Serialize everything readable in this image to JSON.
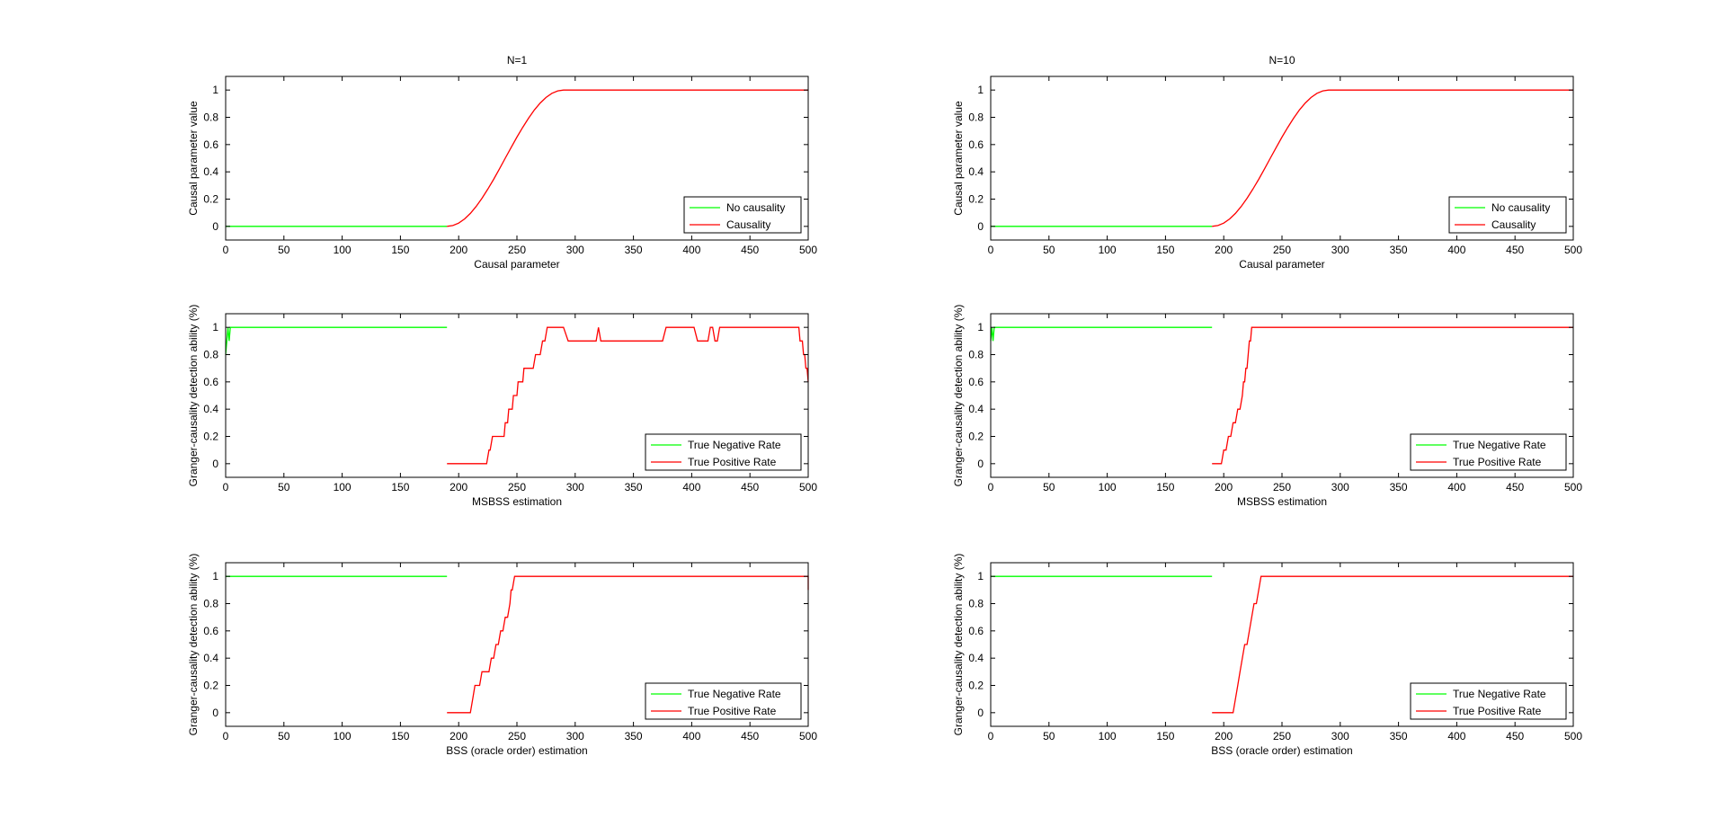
{
  "chart_data": [
    {
      "type": "line",
      "id": "n1-causal",
      "title": "N=1",
      "xlabel": "Causal parameter",
      "ylabel": "Causal parameter value",
      "xlim": [
        0,
        500
      ],
      "ylim": [
        -0.1,
        1.1
      ],
      "xticks": [
        0,
        50,
        100,
        150,
        200,
        250,
        300,
        350,
        400,
        450,
        500
      ],
      "yticks": [
        0,
        0.2,
        0.4,
        0.6,
        0.8,
        1
      ],
      "legend_position": "bottom-right",
      "series": [
        {
          "name": "No causality",
          "color": "#00ff00",
          "x": [
            0,
            190
          ],
          "y": [
            0,
            0
          ]
        },
        {
          "name": "Causality",
          "color": "#ff0000",
          "x": [
            190,
            195,
            200,
            205,
            210,
            215,
            220,
            225,
            230,
            235,
            240,
            245,
            250,
            255,
            260,
            265,
            270,
            275,
            280,
            285,
            290,
            500
          ],
          "y": [
            0,
            0.006,
            0.024,
            0.054,
            0.095,
            0.146,
            0.206,
            0.273,
            0.345,
            0.422,
            0.5,
            0.578,
            0.655,
            0.727,
            0.794,
            0.854,
            0.905,
            0.946,
            0.976,
            0.994,
            1,
            1
          ]
        }
      ]
    },
    {
      "type": "line",
      "id": "n10-causal",
      "title": "N=10",
      "xlabel": "Causal parameter",
      "ylabel": "Causal parameter value",
      "xlim": [
        0,
        500
      ],
      "ylim": [
        -0.1,
        1.1
      ],
      "xticks": [
        0,
        50,
        100,
        150,
        200,
        250,
        300,
        350,
        400,
        450,
        500
      ],
      "yticks": [
        0,
        0.2,
        0.4,
        0.6,
        0.8,
        1
      ],
      "legend_position": "bottom-right",
      "series": [
        {
          "name": "No causality",
          "color": "#00ff00",
          "x": [
            0,
            190
          ],
          "y": [
            0,
            0
          ]
        },
        {
          "name": "Causality",
          "color": "#ff0000",
          "x": [
            190,
            195,
            200,
            205,
            210,
            215,
            220,
            225,
            230,
            235,
            240,
            245,
            250,
            255,
            260,
            265,
            270,
            275,
            280,
            285,
            290,
            500
          ],
          "y": [
            0,
            0.006,
            0.024,
            0.054,
            0.095,
            0.146,
            0.206,
            0.273,
            0.345,
            0.422,
            0.5,
            0.578,
            0.655,
            0.727,
            0.794,
            0.854,
            0.905,
            0.946,
            0.976,
            0.994,
            1,
            1
          ]
        }
      ]
    },
    {
      "type": "line",
      "id": "n1-msbss",
      "title": "",
      "xlabel": "MSBSS estimation",
      "ylabel": "Granger-causality detection ability (%)",
      "xlim": [
        0,
        500
      ],
      "ylim": [
        -0.1,
        1.1
      ],
      "xticks": [
        0,
        50,
        100,
        150,
        200,
        250,
        300,
        350,
        400,
        450,
        500
      ],
      "yticks": [
        0,
        0.2,
        0.4,
        0.6,
        0.8,
        1
      ],
      "legend_position": "bottom-right",
      "series": [
        {
          "name": "True Negative Rate",
          "color": "#00ff00",
          "x": [
            0,
            1,
            2,
            3,
            4,
            190
          ],
          "y": [
            0.8,
            0.9,
            1,
            0.9,
            1,
            1
          ]
        },
        {
          "name": "True Positive Rate",
          "color": "#ff0000",
          "x": [
            190,
            224,
            226,
            227,
            229,
            230,
            231,
            233,
            235,
            236,
            238,
            239,
            240,
            241,
            242,
            243,
            244,
            245,
            246,
            247,
            248,
            249,
            250,
            251,
            252,
            253,
            254,
            255,
            256,
            257,
            258,
            260,
            262,
            264,
            266,
            268,
            270,
            272,
            274,
            276,
            278,
            280,
            282,
            284,
            286,
            290,
            294,
            296,
            298,
            300,
            305,
            310,
            315,
            318,
            320,
            322,
            325,
            330,
            335,
            340,
            345,
            350,
            355,
            360,
            365,
            370,
            375,
            378,
            380,
            385,
            390,
            395,
            398,
            400,
            402,
            405,
            408,
            410,
            412,
            414,
            416,
            418,
            420,
            422,
            424,
            426,
            428,
            430,
            440,
            450,
            460,
            470,
            480,
            490,
            492,
            493,
            494,
            495,
            496,
            497,
            498,
            499,
            500
          ],
          "y": [
            0,
            0,
            0.1,
            0.1,
            0.2,
            0.2,
            0.2,
            0.2,
            0.2,
            0.2,
            0.2,
            0.2,
            0.3,
            0.3,
            0.3,
            0.4,
            0.4,
            0.4,
            0.4,
            0.5,
            0.5,
            0.5,
            0.5,
            0.6,
            0.6,
            0.6,
            0.6,
            0.6,
            0.7,
            0.7,
            0.7,
            0.7,
            0.7,
            0.7,
            0.8,
            0.8,
            0.8,
            0.9,
            0.9,
            1,
            1,
            1,
            1,
            1,
            1,
            1,
            0.9,
            0.9,
            0.9,
            0.9,
            0.9,
            0.9,
            0.9,
            0.9,
            1,
            0.9,
            0.9,
            0.9,
            0.9,
            0.9,
            0.9,
            0.9,
            0.9,
            0.9,
            0.9,
            0.9,
            0.9,
            1,
            1,
            1,
            1,
            1,
            1,
            1,
            1,
            0.9,
            0.9,
            0.9,
            0.9,
            0.9,
            1,
            1,
            0.9,
            0.9,
            1,
            1,
            1,
            1,
            1,
            1,
            1,
            1,
            1,
            1,
            1,
            0.9,
            0.9,
            0.9,
            0.8,
            0.8,
            0.7,
            0.7,
            0.6
          ]
        }
      ]
    },
    {
      "type": "line",
      "id": "n10-msbss",
      "title": "",
      "xlabel": "MSBSS estimation",
      "ylabel": "Granger-causality detection ability (%)",
      "xlim": [
        0,
        500
      ],
      "ylim": [
        -0.1,
        1.1
      ],
      "xticks": [
        0,
        50,
        100,
        150,
        200,
        250,
        300,
        350,
        400,
        450,
        500
      ],
      "yticks": [
        0,
        0.2,
        0.4,
        0.6,
        0.8,
        1
      ],
      "legend_position": "bottom-right",
      "series": [
        {
          "name": "True Negative Rate",
          "color": "#00ff00",
          "x": [
            0,
            1,
            2,
            3,
            190
          ],
          "y": [
            0.9,
            1,
            0.9,
            1,
            1
          ]
        },
        {
          "name": "True Positive Rate",
          "color": "#ff0000",
          "x": [
            190,
            198,
            200,
            202,
            204,
            206,
            208,
            210,
            212,
            214,
            216,
            217,
            218,
            219,
            220,
            221,
            222,
            223,
            224,
            225,
            500
          ],
          "y": [
            0,
            0,
            0.1,
            0.1,
            0.2,
            0.2,
            0.3,
            0.3,
            0.4,
            0.4,
            0.5,
            0.6,
            0.6,
            0.7,
            0.7,
            0.8,
            0.9,
            0.9,
            1,
            1,
            1
          ]
        }
      ]
    },
    {
      "type": "line",
      "id": "n1-bss",
      "title": "",
      "xlabel": "BSS (oracle order) estimation",
      "ylabel": "Granger-causality detection ability (%)",
      "xlim": [
        0,
        500
      ],
      "ylim": [
        -0.1,
        1.1
      ],
      "xticks": [
        0,
        50,
        100,
        150,
        200,
        250,
        300,
        350,
        400,
        450,
        500
      ],
      "yticks": [
        0,
        0.2,
        0.4,
        0.6,
        0.8,
        1
      ],
      "legend_position": "bottom-right",
      "series": [
        {
          "name": "True Negative Rate",
          "color": "#00ff00",
          "x": [
            0,
            190
          ],
          "y": [
            1,
            1
          ]
        },
        {
          "name": "True Positive Rate",
          "color": "#ff0000",
          "x": [
            190,
            210,
            212,
            214,
            216,
            218,
            220,
            222,
            224,
            226,
            228,
            230,
            232,
            234,
            236,
            238,
            240,
            242,
            244,
            245,
            246,
            248,
            250,
            252,
            500,
            500
          ],
          "y": [
            0,
            0,
            0.1,
            0.2,
            0.2,
            0.2,
            0.3,
            0.3,
            0.3,
            0.3,
            0.4,
            0.4,
            0.5,
            0.5,
            0.6,
            0.6,
            0.7,
            0.7,
            0.8,
            0.9,
            0.9,
            1,
            1,
            1,
            1,
            0.9
          ]
        }
      ]
    },
    {
      "type": "line",
      "id": "n10-bss",
      "title": "",
      "xlabel": "BSS (oracle order) estimation",
      "ylabel": "Granger-causality detection ability (%)",
      "xlim": [
        0,
        500
      ],
      "ylim": [
        -0.1,
        1.1
      ],
      "xticks": [
        0,
        50,
        100,
        150,
        200,
        250,
        300,
        350,
        400,
        450,
        500
      ],
      "yticks": [
        0,
        0.2,
        0.4,
        0.6,
        0.8,
        1
      ],
      "legend_position": "bottom-right",
      "series": [
        {
          "name": "True Negative Rate",
          "color": "#00ff00",
          "x": [
            0,
            190
          ],
          "y": [
            1,
            1
          ]
        },
        {
          "name": "True Positive Rate",
          "color": "#ff0000",
          "x": [
            190,
            208,
            210,
            212,
            214,
            216,
            218,
            220,
            222,
            224,
            226,
            228,
            230,
            232,
            500
          ],
          "y": [
            0,
            0,
            0.1,
            0.2,
            0.3,
            0.4,
            0.5,
            0.5,
            0.6,
            0.7,
            0.8,
            0.8,
            0.9,
            1,
            1
          ]
        }
      ]
    }
  ]
}
